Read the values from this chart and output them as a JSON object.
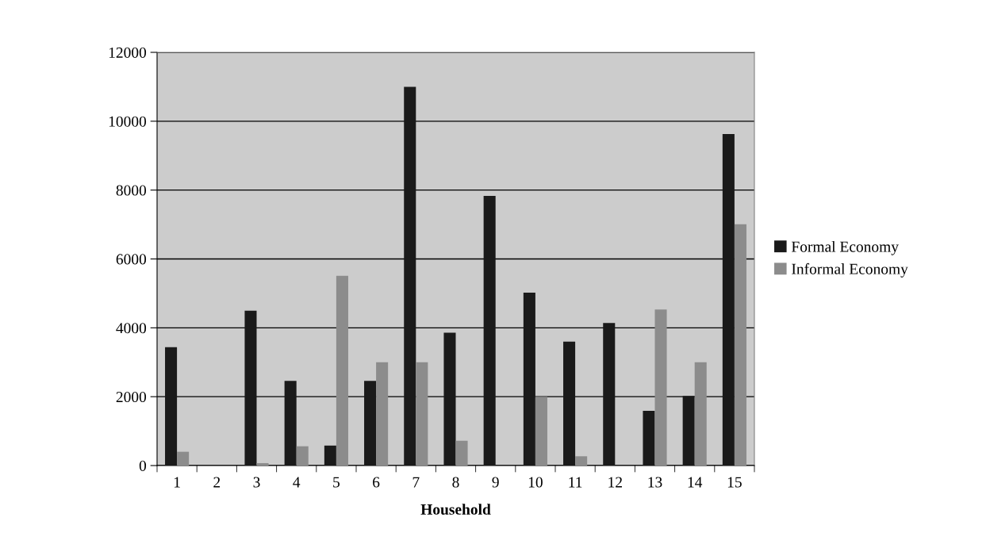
{
  "chart_data": {
    "type": "bar",
    "xlabel": "Household",
    "categories": [
      "1",
      "2",
      "3",
      "4",
      "5",
      "6",
      "7",
      "8",
      "9",
      "10",
      "11",
      "12",
      "13",
      "14",
      "15"
    ],
    "series": [
      {
        "name": "Formal Economy",
        "color": "#1a1a1a",
        "values": [
          3440,
          0,
          4500,
          2460,
          580,
          2460,
          11000,
          3860,
          7830,
          5020,
          3600,
          4140,
          1590,
          2020,
          9630
        ]
      },
      {
        "name": "Informal Economy",
        "color": "#8c8c8c",
        "values": [
          400,
          0,
          70,
          560,
          5510,
          3000,
          3000,
          720,
          0,
          2000,
          270,
          0,
          4530,
          3000,
          7010
        ]
      }
    ],
    "ylim": [
      0,
      12000
    ],
    "yticks": [
      0,
      2000,
      4000,
      6000,
      8000,
      10000,
      12000
    ],
    "grid": "y",
    "legend": "right"
  }
}
